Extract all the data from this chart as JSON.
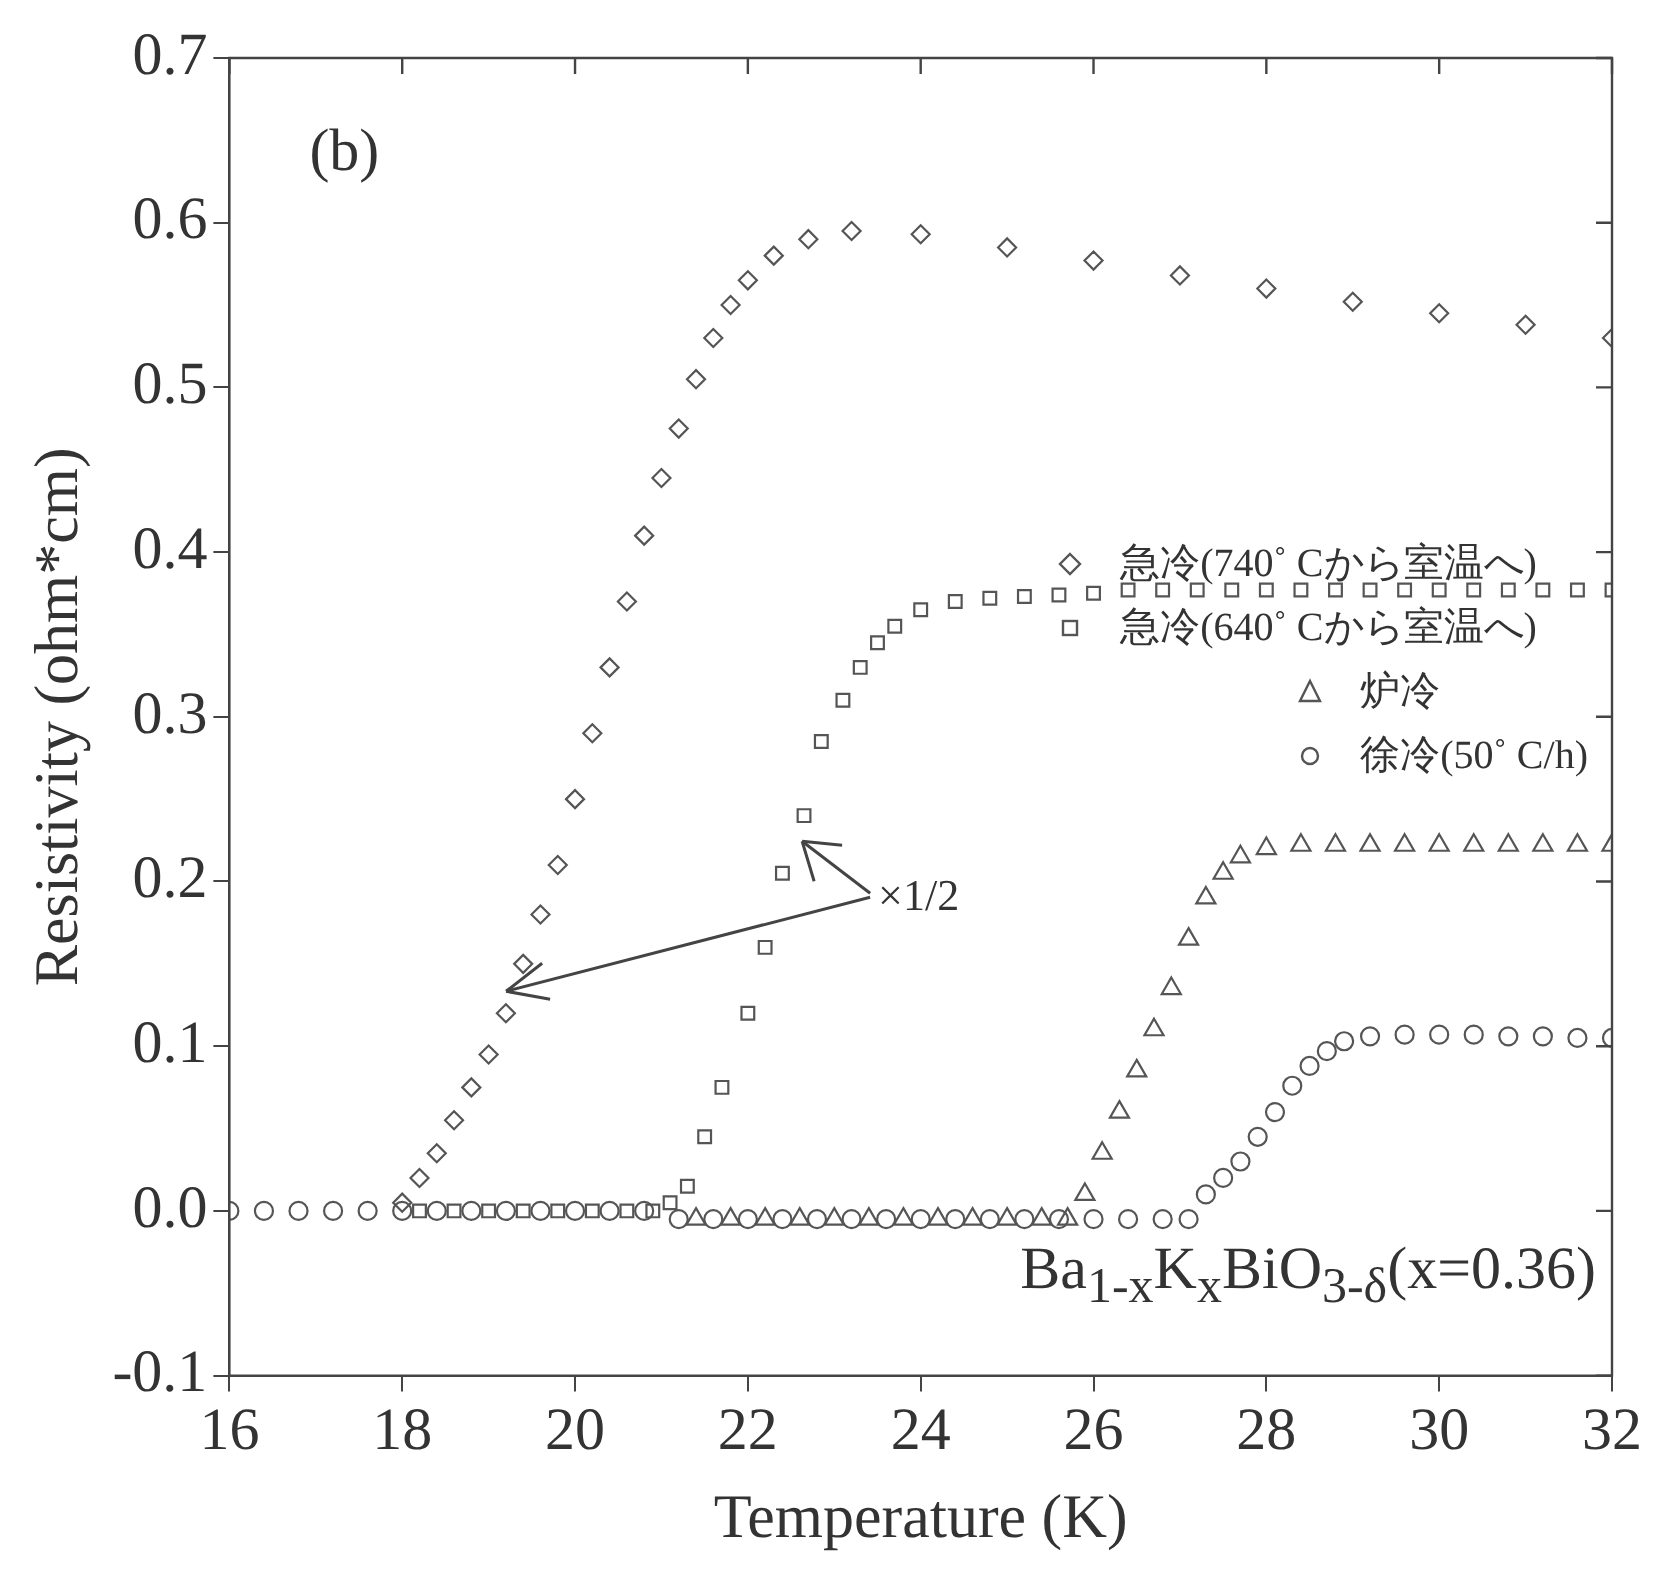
{
  "chart_data": {
    "type": "scatter",
    "xlabel": "Temperature (K)",
    "ylabel": "Resistivity (ohm*cm)",
    "xlim": [
      16,
      32
    ],
    "xticks": [
      16,
      18,
      20,
      22,
      24,
      26,
      28,
      30,
      32
    ],
    "ylim": [
      -0.1,
      0.7
    ],
    "yticks": [
      -0.1,
      {
        "value": 0,
        "label": "0.0"
      },
      0.1,
      0.2,
      0.3,
      0.4,
      0.5,
      0.6,
      0.7
    ],
    "legend": "right",
    "annotations": [
      "(b)",
      "×1/2",
      "Ba$_{1-x}$K$_{x}$BiO$_{3-δ}$(x=0.36)"
    ],
    "series": [
      {
        "name": "急冷(740˚ Cから室温へ)",
        "color": "#555555",
        "marker": "diamond",
        "x": [
          18.0,
          18.2,
          18.4,
          18.6,
          18.8,
          19.0,
          19.2,
          19.4,
          19.6,
          19.8,
          20.0,
          20.2,
          20.4,
          20.6,
          20.8,
          21.0,
          21.2,
          21.4,
          21.6,
          21.8,
          22.0,
          22.3,
          22.7,
          23.2,
          24.0,
          25.0,
          26.0,
          27.0,
          28.0,
          29.0,
          30.0,
          31.0,
          32.0
        ],
        "values": [
          0.005,
          0.02,
          0.035,
          0.055,
          0.075,
          0.095,
          0.12,
          0.15,
          0.18,
          0.21,
          0.25,
          0.29,
          0.33,
          0.37,
          0.41,
          0.445,
          0.475,
          0.505,
          0.53,
          0.55,
          0.565,
          0.58,
          0.59,
          0.595,
          0.593,
          0.585,
          0.577,
          0.568,
          0.56,
          0.552,
          0.545,
          0.538,
          0.53
        ]
      },
      {
        "name": "急冷(640˚ Cから室温へ)",
        "color": "#555555",
        "marker": "square",
        "x": [
          18.2,
          18.6,
          19.0,
          19.4,
          19.8,
          20.2,
          20.6,
          20.9,
          21.1,
          21.3,
          21.5,
          21.7,
          22.0,
          22.2,
          22.4,
          22.65,
          22.85,
          23.1,
          23.3,
          23.5,
          23.7,
          24.0,
          24.4,
          24.8,
          25.2,
          25.6,
          26.0,
          26.4,
          26.8,
          27.2,
          27.6,
          28.0,
          28.4,
          28.8,
          29.2,
          29.6,
          30.0,
          30.4,
          30.8,
          31.2,
          31.6,
          32.0
        ],
        "values": [
          0,
          0,
          0,
          0,
          0,
          0,
          0,
          0,
          0.005,
          0.015,
          0.045,
          0.075,
          0.12,
          0.16,
          0.205,
          0.24,
          0.285,
          0.31,
          0.33,
          0.345,
          0.355,
          0.365,
          0.37,
          0.372,
          0.373,
          0.374,
          0.375,
          0.377,
          0.377,
          0.377,
          0.377,
          0.377,
          0.377,
          0.377,
          0.377,
          0.377,
          0.377,
          0.377,
          0.377,
          0.377,
          0.377,
          0.377
        ]
      },
      {
        "name": "炉冷",
        "color": "#555555",
        "marker": "triangle",
        "x": [
          21.4,
          21.8,
          22.2,
          22.6,
          23.0,
          23.4,
          23.8,
          24.2,
          24.6,
          25.0,
          25.4,
          25.7,
          25.9,
          26.1,
          26.3,
          26.5,
          26.7,
          26.9,
          27.1,
          27.3,
          27.5,
          27.7,
          28.0,
          28.4,
          28.8,
          29.2,
          29.6,
          30.0,
          30.4,
          30.8,
          31.2,
          31.6,
          32.0
        ],
        "values": [
          -0.005,
          -0.005,
          -0.005,
          -0.005,
          -0.005,
          -0.005,
          -0.005,
          -0.005,
          -0.005,
          -0.005,
          -0.005,
          -0.005,
          0.01,
          0.035,
          0.06,
          0.085,
          0.11,
          0.135,
          0.165,
          0.19,
          0.205,
          0.215,
          0.22,
          0.222,
          0.222,
          0.222,
          0.222,
          0.222,
          0.222,
          0.222,
          0.222,
          0.222,
          0.222
        ]
      },
      {
        "name": "徐冷(50˚ C/h)",
        "color": "#555555",
        "marker": "circle",
        "x": [
          16.0,
          16.4,
          16.8,
          17.2,
          17.6,
          18.0,
          18.4,
          18.8,
          19.2,
          19.6,
          20.0,
          20.4,
          20.8,
          21.2,
          21.6,
          22.0,
          22.4,
          22.8,
          23.2,
          23.6,
          24.0,
          24.4,
          24.8,
          25.2,
          25.6,
          26.0,
          26.4,
          26.8,
          27.1,
          27.3,
          27.5,
          27.7,
          27.9,
          28.1,
          28.3,
          28.5,
          28.7,
          28.9,
          29.2,
          29.6,
          30.0,
          30.4,
          30.8,
          31.2,
          31.6,
          32.0
        ],
        "values": [
          0,
          0,
          0,
          0,
          0,
          0,
          0,
          0,
          0,
          0,
          0,
          0,
          0,
          -0.005,
          -0.005,
          -0.005,
          -0.005,
          -0.005,
          -0.005,
          -0.005,
          -0.005,
          -0.005,
          -0.005,
          -0.005,
          -0.005,
          -0.005,
          -0.005,
          -0.005,
          -0.005,
          0.01,
          0.02,
          0.03,
          0.045,
          0.06,
          0.076,
          0.088,
          0.097,
          0.103,
          0.106,
          0.107,
          0.107,
          0.107,
          0.106,
          0.106,
          0.105,
          0.105
        ]
      }
    ]
  }
}
